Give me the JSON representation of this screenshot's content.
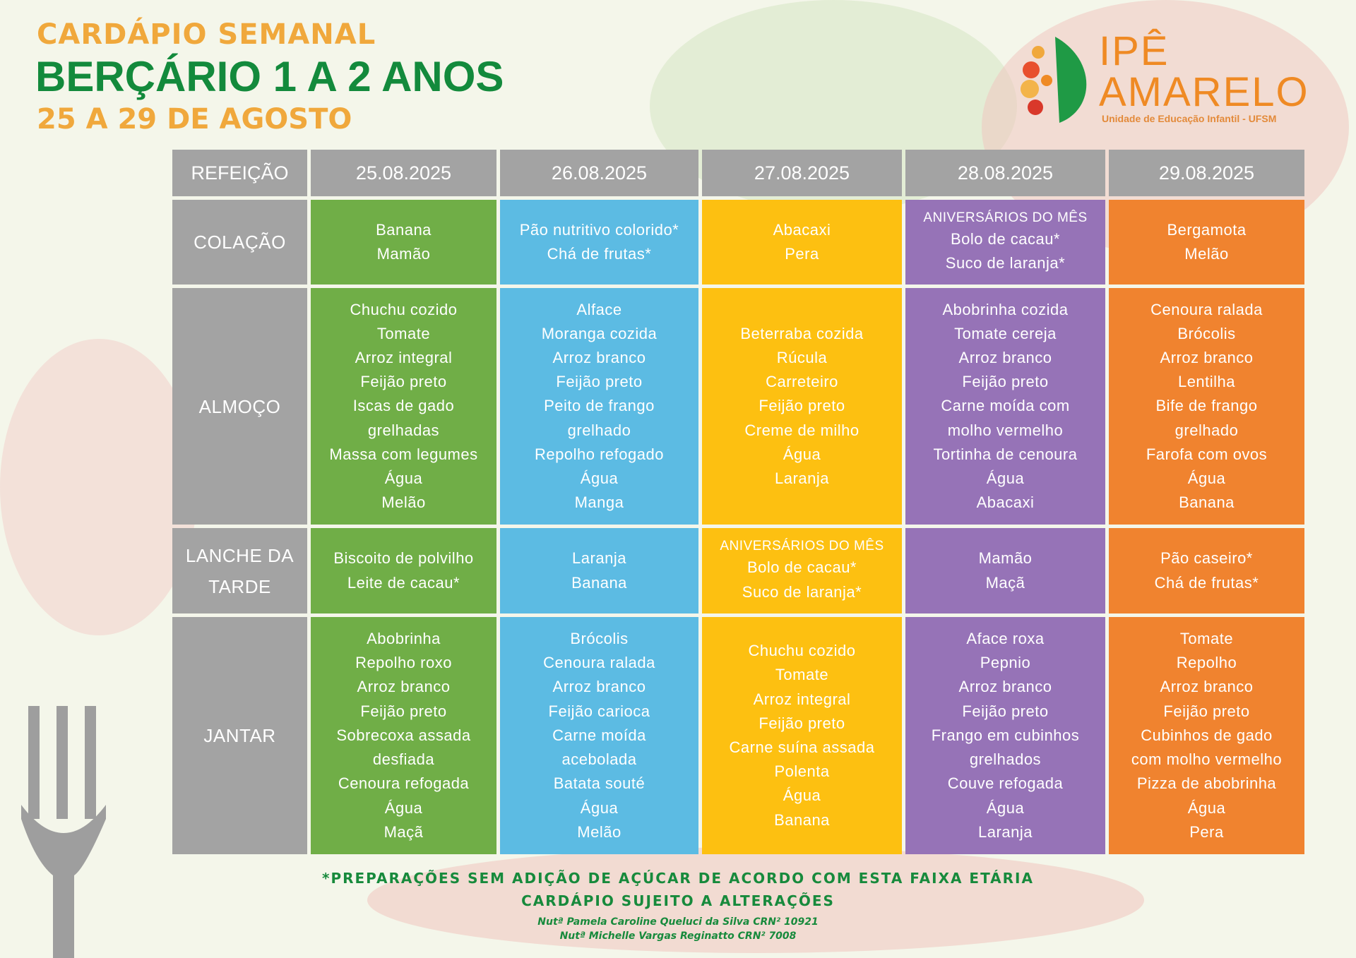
{
  "header": {
    "subtitle": "CARDÁPIO SEMANAL",
    "title": "BERÇÁRIO 1 A 2 ANOS",
    "dates": "25 A 29 DE AGOSTO"
  },
  "logo": {
    "name_line1": "IPÊ",
    "name_line2": "AMARELO",
    "tagline": "Unidade de Educação Infantil - UFSM"
  },
  "colors": {
    "green": "#70ae47",
    "blue": "#5cbbe3",
    "yellow": "#fdc011",
    "purple": "#9673b7",
    "orange": "#f0832f",
    "gray": "#a3a3a3",
    "title_green": "#138a3c",
    "title_orange": "#f0a83c"
  },
  "table": {
    "corner": "REFEIÇÃO",
    "days": [
      "25.08.2025",
      "26.08.2025",
      "27.08.2025",
      "28.08.2025",
      "29.08.2025"
    ],
    "meals": [
      {
        "label": "COLAÇÃO",
        "cells": [
          {
            "items": [
              "Banana",
              "Mamão"
            ]
          },
          {
            "items": [
              "Pão nutritivo colorido*",
              "Chá de frutas*"
            ]
          },
          {
            "items": [
              "Abacaxi",
              "Pera"
            ]
          },
          {
            "tag": "ANIVERSÁRIOS DO MÊS",
            "items": [
              "Bolo de cacau*",
              "Suco de laranja*"
            ]
          },
          {
            "items": [
              "Bergamota",
              "Melão"
            ]
          }
        ]
      },
      {
        "label": "ALMOÇO",
        "cells": [
          {
            "items": [
              "Chuchu cozido",
              "Tomate",
              "Arroz integral",
              "Feijão preto",
              "Iscas de gado",
              "grelhadas",
              "Massa com legumes",
              "Água",
              "Melão"
            ]
          },
          {
            "items": [
              "Alface",
              "Moranga cozida",
              "Arroz branco",
              "Feijão preto",
              "Peito de frango",
              "grelhado",
              "Repolho refogado",
              "Água",
              "Manga"
            ]
          },
          {
            "items": [
              "Beterraba cozida",
              "Rúcula",
              "Carreteiro",
              "Feijão preto",
              "Creme de milho",
              "Água",
              "Laranja"
            ]
          },
          {
            "items": [
              "Abobrinha cozida",
              "Tomate cereja",
              "Arroz branco",
              "Feijão preto",
              "Carne moída com",
              "molho vermelho",
              "Tortinha de cenoura",
              "Água",
              "Abacaxi"
            ]
          },
          {
            "items": [
              "Cenoura ralada",
              "Brócolis",
              "Arroz branco",
              "Lentilha",
              "Bife de frango",
              "grelhado",
              "Farofa com ovos",
              "Água",
              "Banana"
            ]
          }
        ]
      },
      {
        "label": "LANCHE DA TARDE",
        "cells": [
          {
            "items": [
              "Biscoito de polvilho",
              "Leite de cacau*"
            ]
          },
          {
            "items": [
              "Laranja",
              "Banana"
            ]
          },
          {
            "tag": "ANIVERSÁRIOS DO MÊS",
            "items": [
              "Bolo de cacau*",
              "Suco de laranja*"
            ]
          },
          {
            "items": [
              "Mamão",
              "Maçã"
            ]
          },
          {
            "items": [
              "Pão caseiro*",
              "Chá de frutas*"
            ]
          }
        ]
      },
      {
        "label": "JANTAR",
        "cells": [
          {
            "items": [
              "Abobrinha",
              "Repolho roxo",
              "Arroz branco",
              "Feijão preto",
              "Sobrecoxa assada",
              "desfiada",
              "Cenoura refogada",
              "Água",
              "Maçã"
            ]
          },
          {
            "items": [
              "Brócolis",
              "Cenoura ralada",
              "Arroz branco",
              "Feijão carioca",
              "Carne moída",
              "acebolada",
              "Batata souté",
              "Água",
              "Melão"
            ]
          },
          {
            "items": [
              "Chuchu cozido",
              "Tomate",
              "Arroz integral",
              "Feijão preto",
              "Carne suína assada",
              "Polenta",
              "Água",
              "Banana"
            ]
          },
          {
            "items": [
              "Aface roxa",
              "Pepnio",
              "Arroz branco",
              "Feijão preto",
              "Frango em cubinhos",
              "grelhados",
              "Couve refogada",
              "Água",
              "Laranja"
            ]
          },
          {
            "items": [
              "Tomate",
              "Repolho",
              "Arroz branco",
              "Feijão preto",
              "Cubinhos de gado",
              "com molho vermelho",
              "Pizza de abobrinha",
              "Água",
              "Pera"
            ]
          }
        ]
      }
    ]
  },
  "footer": {
    "note": "*PREPARAÇÕES SEM ADIÇÃO DE AÇÚCAR DE ACORDO COM ESTA FAIXA ETÁRIA",
    "disclaimer": "CARDÁPIO SUJEITO A ALTERAÇÕES",
    "nutritionist1": "Nutª Pamela Caroline Queluci da Silva CRN² 10921",
    "nutritionist2": "Nutª Michelle Vargas Reginatto CRN² 7008"
  }
}
